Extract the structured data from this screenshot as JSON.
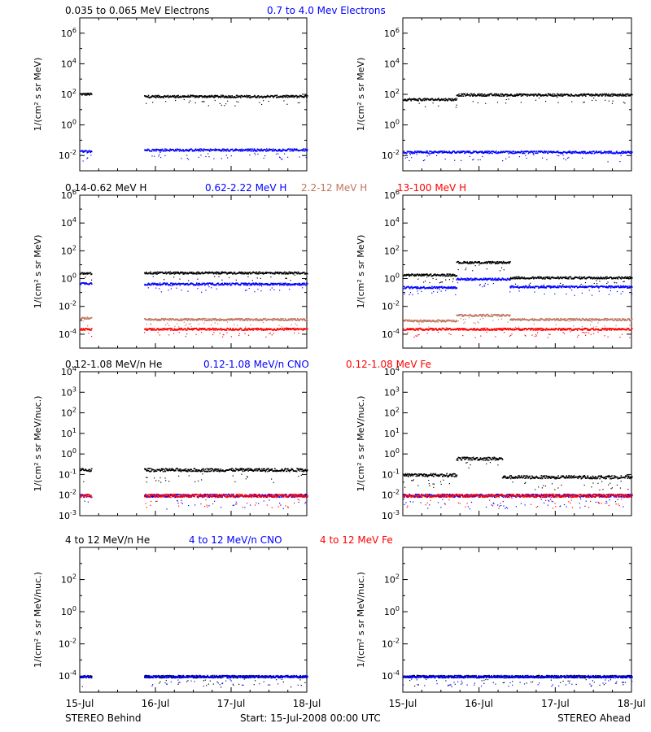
{
  "colors": {
    "black": "#000000",
    "blue": "#0000ff",
    "tan": "#c07860",
    "red": "#ff0000"
  },
  "footer": {
    "left": "STEREO Behind",
    "center": "Start: 15-Jul-2008 00:00 UTC",
    "right": "STEREO Ahead"
  },
  "chart_data": [
    {
      "type": "scatter",
      "row": 1,
      "spacecraft": "STEREO Behind",
      "x_unit": "days since 15-Jul-2008 00:00 UTC",
      "xlim": [
        0,
        3
      ],
      "x_tick_labels": [
        "15-Jul",
        "16-Jul",
        "17-Jul",
        "18-Jul"
      ],
      "ylabel": "1/(cm² s sr MeV)",
      "ylog": true,
      "ylim_exp": [
        -3,
        7
      ],
      "y_tick_exps": [
        -2,
        0,
        2,
        4,
        6
      ],
      "series": [
        {
          "name": "0.035 to 0.065 MeV Electrons",
          "color": "black",
          "segments": [
            [
              0,
              0.15,
              2.05
            ],
            [
              0.85,
              3,
              1.9
            ]
          ]
        },
        {
          "name": "0.7 to 4.0 Mev Electrons",
          "color": "blue",
          "segments": [
            [
              0,
              0.15,
              -1.7
            ],
            [
              0.85,
              3,
              -1.6
            ]
          ]
        }
      ]
    },
    {
      "type": "scatter",
      "row": 1,
      "spacecraft": "STEREO Ahead",
      "x_unit": "days since 15-Jul-2008 00:00 UTC",
      "xlim": [
        0,
        3
      ],
      "x_tick_labels": [
        "15-Jul",
        "16-Jul",
        "17-Jul",
        "18-Jul"
      ],
      "ylabel": "1/(cm² s sr MeV)",
      "ylog": true,
      "ylim_exp": [
        -3,
        7
      ],
      "y_tick_exps": [
        -2,
        0,
        2,
        4,
        6
      ],
      "series": [
        {
          "name": "0.035 to 0.065 MeV Electrons",
          "color": "black",
          "segments": [
            [
              0,
              0.7,
              1.7
            ],
            [
              0.7,
              3,
              2.0
            ]
          ]
        },
        {
          "name": "0.7 to 4.0 Mev Electrons",
          "color": "blue",
          "segments": [
            [
              0,
              3,
              -1.75
            ]
          ]
        }
      ]
    },
    {
      "type": "scatter",
      "row": 2,
      "spacecraft": "STEREO Behind",
      "x_unit": "days since 15-Jul-2008 00:00 UTC",
      "xlim": [
        0,
        3
      ],
      "x_tick_labels": [
        "15-Jul",
        "16-Jul",
        "17-Jul",
        "18-Jul"
      ],
      "ylabel": "1/(cm² s sr MeV)",
      "ylog": true,
      "ylim_exp": [
        -5,
        6
      ],
      "y_tick_exps": [
        -4,
        -2,
        0,
        2,
        4,
        6
      ],
      "series": [
        {
          "name": "0.14-0.62 MeV H",
          "color": "black",
          "segments": [
            [
              0,
              0.15,
              0.4
            ],
            [
              0.85,
              3,
              0.45
            ]
          ]
        },
        {
          "name": "0.62-2.22 MeV H",
          "color": "blue",
          "segments": [
            [
              0,
              0.15,
              -0.3
            ],
            [
              0.85,
              3,
              -0.35
            ]
          ]
        },
        {
          "name": "2.2-12 MeV H",
          "color": "tan",
          "segments": [
            [
              0,
              0.15,
              -2.8
            ],
            [
              0.85,
              3,
              -2.9
            ]
          ]
        },
        {
          "name": "13-100 MeV H",
          "color": "red",
          "segments": [
            [
              0,
              0.15,
              -3.6
            ],
            [
              0.85,
              3,
              -3.6
            ]
          ]
        }
      ]
    },
    {
      "type": "scatter",
      "row": 2,
      "spacecraft": "STEREO Ahead",
      "x_unit": "days since 15-Jul-2008 00:00 UTC",
      "xlim": [
        0,
        3
      ],
      "x_tick_labels": [
        "15-Jul",
        "16-Jul",
        "17-Jul",
        "18-Jul"
      ],
      "ylabel": "1/(cm² s sr MeV)",
      "ylog": true,
      "ylim_exp": [
        -5,
        6
      ],
      "y_tick_exps": [
        -4,
        -2,
        0,
        2,
        4,
        6
      ],
      "series": [
        {
          "name": "0.14-0.62 MeV H",
          "color": "black",
          "segments": [
            [
              0,
              0.7,
              0.3
            ],
            [
              0.7,
              1.4,
              1.2
            ],
            [
              1.4,
              3,
              0.1
            ]
          ]
        },
        {
          "name": "0.62-2.22 MeV H",
          "color": "blue",
          "segments": [
            [
              0,
              0.7,
              -0.6
            ],
            [
              0.7,
              1.4,
              0.0
            ],
            [
              1.4,
              3,
              -0.55
            ]
          ]
        },
        {
          "name": "2.2-12 MeV H",
          "color": "tan",
          "segments": [
            [
              0,
              0.7,
              -3.0
            ],
            [
              0.7,
              1.4,
              -2.6
            ],
            [
              1.4,
              3,
              -2.9
            ]
          ]
        },
        {
          "name": "13-100 MeV H",
          "color": "red",
          "segments": [
            [
              0,
              3,
              -3.6
            ]
          ]
        }
      ]
    },
    {
      "type": "scatter",
      "row": 3,
      "spacecraft": "STEREO Behind",
      "x_unit": "days since 15-Jul-2008 00:00 UTC",
      "xlim": [
        0,
        3
      ],
      "x_tick_labels": [
        "15-Jul",
        "16-Jul",
        "17-Jul",
        "18-Jul"
      ],
      "ylabel": "1/(cm² s sr MeV/nuc.)",
      "ylog": true,
      "ylim_exp": [
        -3,
        4
      ],
      "y_tick_exps": [
        -3,
        -2,
        -1,
        0,
        1,
        2,
        3,
        4
      ],
      "series": [
        {
          "name": "0.12-1.08 MeV/n He",
          "color": "black",
          "segments": [
            [
              0,
              0.15,
              -0.75
            ],
            [
              0.85,
              3,
              -0.75
            ]
          ]
        },
        {
          "name": "0.12-1.08 MeV/n CNO",
          "color": "blue",
          "segments": [
            [
              0,
              0.15,
              -2.0
            ],
            [
              0.85,
              3,
              -2.0
            ]
          ]
        },
        {
          "name": "0.12-1.08 MeV Fe",
          "color": "red",
          "segments": [
            [
              0,
              0.15,
              -2.0
            ],
            [
              0.85,
              3,
              -2.0
            ]
          ]
        }
      ]
    },
    {
      "type": "scatter",
      "row": 3,
      "spacecraft": "STEREO Ahead",
      "x_unit": "days since 15-Jul-2008 00:00 UTC",
      "xlim": [
        0,
        3
      ],
      "x_tick_labels": [
        "15-Jul",
        "16-Jul",
        "17-Jul",
        "18-Jul"
      ],
      "ylabel": "1/(cm² s sr MeV/nuc.)",
      "ylog": true,
      "ylim_exp": [
        -3,
        4
      ],
      "y_tick_exps": [
        -3,
        -2,
        -1,
        0,
        1,
        2,
        3,
        4
      ],
      "series": [
        {
          "name": "0.12-1.08 MeV/n He",
          "color": "black",
          "segments": [
            [
              0,
              0.7,
              -1.0
            ],
            [
              0.7,
              1.3,
              -0.2
            ],
            [
              1.3,
              3,
              -1.1
            ]
          ]
        },
        {
          "name": "0.12-1.08 MeV/n CNO",
          "color": "blue",
          "segments": [
            [
              0,
              3,
              -2.0
            ]
          ]
        },
        {
          "name": "0.12-1.08 MeV Fe",
          "color": "red",
          "segments": [
            [
              0,
              3,
              -2.0
            ]
          ]
        }
      ]
    },
    {
      "type": "scatter",
      "row": 4,
      "spacecraft": "STEREO Behind",
      "x_unit": "days since 15-Jul-2008 00:00 UTC",
      "xlim": [
        0,
        3
      ],
      "x_tick_labels": [
        "15-Jul",
        "16-Jul",
        "17-Jul",
        "18-Jul"
      ],
      "ylabel": "1/(cm² s sr MeV/nuc.)",
      "ylog": true,
      "ylim_exp": [
        -5,
        4
      ],
      "y_tick_exps": [
        -4,
        -2,
        0,
        2
      ],
      "series": [
        {
          "name": "4 to 12 MeV/n He",
          "color": "black",
          "segments": [
            [
              0,
              0.15,
              -4.0
            ],
            [
              0.85,
              3,
              -4.0
            ]
          ]
        },
        {
          "name": "4 to 12 MeV/n CNO",
          "color": "blue",
          "segments": [
            [
              0,
              0.15,
              -4.0
            ],
            [
              0.85,
              3,
              -4.0
            ]
          ]
        },
        {
          "name": "4 to 12 MeV Fe",
          "color": "red",
          "segments": []
        }
      ]
    },
    {
      "type": "scatter",
      "row": 4,
      "spacecraft": "STEREO Ahead",
      "x_unit": "days since 15-Jul-2008 00:00 UTC",
      "xlim": [
        0,
        3
      ],
      "x_tick_labels": [
        "15-Jul",
        "16-Jul",
        "17-Jul",
        "18-Jul"
      ],
      "ylabel": "1/(cm² s sr MeV/nuc.)",
      "ylog": true,
      "ylim_exp": [
        -5,
        4
      ],
      "y_tick_exps": [
        -4,
        -2,
        0,
        2
      ],
      "series": [
        {
          "name": "4 to 12 MeV/n He",
          "color": "black",
          "segments": [
            [
              0,
              3,
              -4.0
            ]
          ]
        },
        {
          "name": "4 to 12 MeV/n CNO",
          "color": "blue",
          "segments": [
            [
              0,
              3,
              -4.0
            ]
          ]
        },
        {
          "name": "4 to 12 MeV Fe",
          "color": "red",
          "segments": []
        }
      ]
    }
  ]
}
